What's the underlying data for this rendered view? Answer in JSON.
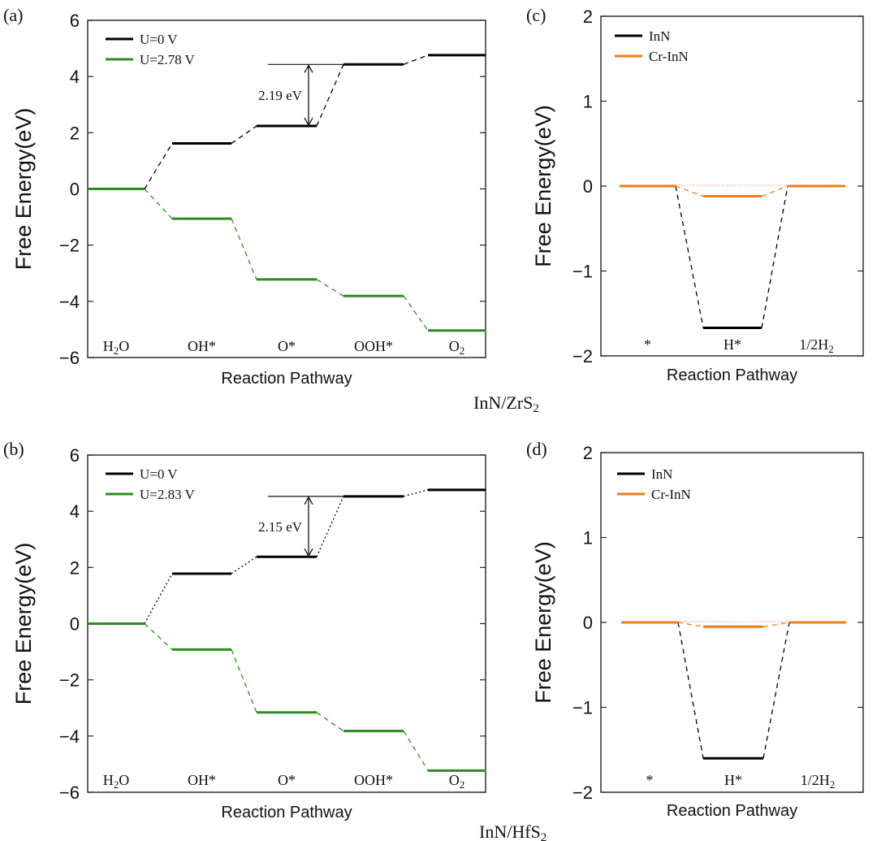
{
  "colors": {
    "u0": "#000000",
    "uapplied": "#2e8b22",
    "inn": "#000000",
    "crinn": "#ee7d1a"
  },
  "captions": {
    "top": "InN/ZrS2",
    "bottom": "InN/HfS2"
  },
  "chart_data": [
    {
      "panel": "(a)",
      "type": "line",
      "subtype": "step-energy-diagram",
      "title": "",
      "xlabel": "Reaction Pathway",
      "ylabel": "Free Energy(eV)",
      "ylim": [
        -6,
        6
      ],
      "yticks": [
        -6,
        -4,
        -2,
        0,
        2,
        4,
        6
      ],
      "categories": [
        "H2O",
        "OH*",
        "O*",
        "OOH*",
        "O2"
      ],
      "legend_position": "top-left",
      "series": [
        {
          "name": "U=0 V",
          "color_key": "u0",
          "connector": "dashed",
          "values": [
            0,
            1.62,
            2.24,
            4.43,
            4.76
          ]
        },
        {
          "name": "U=2.78 V",
          "color_key": "uapplied",
          "connector": "dashed",
          "values": [
            0,
            -1.06,
            -3.22,
            -3.81,
            -5.04
          ]
        }
      ],
      "annotations": [
        {
          "text": "2.19 eV",
          "from_step": 2,
          "to_step": 3
        }
      ]
    },
    {
      "panel": "(b)",
      "type": "line",
      "subtype": "step-energy-diagram",
      "title": "",
      "xlabel": "Reaction Pathway",
      "ylabel": "Free Energy(eV)",
      "ylim": [
        -6,
        6
      ],
      "yticks": [
        -6,
        -4,
        -2,
        0,
        2,
        4,
        6
      ],
      "categories": [
        "H2O",
        "OH*",
        "O*",
        "OOH*",
        "O2"
      ],
      "legend_position": "top-left",
      "series": [
        {
          "name": "U=0 V",
          "color_key": "u0",
          "connector": "dotted",
          "values": [
            0,
            1.78,
            2.38,
            4.53,
            4.76
          ]
        },
        {
          "name": "U=2.83 V",
          "color_key": "uapplied",
          "connector": "dashed",
          "values": [
            0,
            -0.92,
            -3.16,
            -3.82,
            -5.23
          ]
        }
      ],
      "annotations": [
        {
          "text": "2.15 eV",
          "from_step": 2,
          "to_step": 3
        }
      ]
    },
    {
      "panel": "(c)",
      "type": "line",
      "subtype": "step-energy-diagram",
      "title": "",
      "xlabel": "Reaction Pathway",
      "ylabel": "Free Energy(eV)",
      "ylim": [
        -2,
        2
      ],
      "yticks": [
        -2,
        -1,
        0,
        1,
        2
      ],
      "categories": [
        "*",
        "H*",
        "1/2H2"
      ],
      "legend_position": "top-left",
      "series": [
        {
          "name": "InN",
          "color_key": "inn",
          "connector": "dashed",
          "values": [
            0,
            -1.67,
            0
          ]
        },
        {
          "name": "Cr-InN",
          "color_key": "crinn",
          "connector": "dashed",
          "values": [
            0,
            -0.12,
            0
          ]
        }
      ],
      "annotations": []
    },
    {
      "panel": "(d)",
      "type": "line",
      "subtype": "step-energy-diagram",
      "title": "",
      "xlabel": "Reaction Pathway",
      "ylabel": "Free Energy(eV)",
      "ylim": [
        -2,
        2
      ],
      "yticks": [
        -2,
        -1,
        0,
        1,
        2
      ],
      "categories": [
        "*",
        "H*",
        "1/2H2"
      ],
      "legend_position": "top-left",
      "series": [
        {
          "name": "InN",
          "color_key": "inn",
          "connector": "dashed",
          "values": [
            0,
            -1.6,
            0
          ]
        },
        {
          "name": "Cr-InN",
          "color_key": "crinn",
          "connector": "dashed",
          "values": [
            0,
            -0.05,
            0
          ]
        }
      ],
      "annotations": []
    }
  ]
}
